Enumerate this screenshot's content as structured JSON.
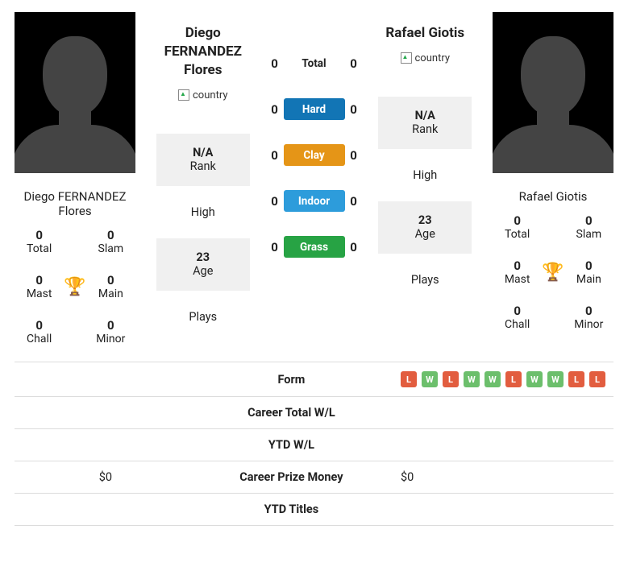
{
  "colors": {
    "hard": "#1275b5",
    "clay": "#e59517",
    "indoor": "#2d9cdb",
    "grass": "#27a344",
    "win": "#6cbf6c",
    "loss": "#e25d3f",
    "trophy": "#2a6bb6"
  },
  "left": {
    "name": "Diego FERNANDEZ Flores",
    "photo_name": "Diego FERNANDEZ Flores",
    "flag_alt": "country",
    "rank_value": "N/A",
    "rank_label": "Rank",
    "high_value": "",
    "high_label": "High",
    "age_value": "23",
    "age_label": "Age",
    "plays_value": "",
    "plays_label": "Plays",
    "stats": {
      "total": {
        "v": "0",
        "l": "Total"
      },
      "slam": {
        "v": "0",
        "l": "Slam"
      },
      "mast": {
        "v": "0",
        "l": "Mast"
      },
      "main": {
        "v": "0",
        "l": "Main"
      },
      "chall": {
        "v": "0",
        "l": "Chall"
      },
      "minor": {
        "v": "0",
        "l": "Minor"
      }
    }
  },
  "right": {
    "name": "Rafael Giotis",
    "photo_name": "Rafael Giotis",
    "flag_alt": "country",
    "rank_value": "N/A",
    "rank_label": "Rank",
    "high_value": "",
    "high_label": "High",
    "age_value": "23",
    "age_label": "Age",
    "plays_value": "",
    "plays_label": "Plays",
    "stats": {
      "total": {
        "v": "0",
        "l": "Total"
      },
      "slam": {
        "v": "0",
        "l": "Slam"
      },
      "mast": {
        "v": "0",
        "l": "Mast"
      },
      "main": {
        "v": "0",
        "l": "Main"
      },
      "chall": {
        "v": "0",
        "l": "Chall"
      },
      "minor": {
        "v": "0",
        "l": "Minor"
      }
    }
  },
  "h2h": {
    "rows": [
      {
        "l": "0",
        "label": "Total",
        "r": "0",
        "style": "plain"
      },
      {
        "l": "0",
        "label": "Hard",
        "r": "0",
        "colorKey": "hard"
      },
      {
        "l": "0",
        "label": "Clay",
        "r": "0",
        "colorKey": "clay"
      },
      {
        "l": "0",
        "label": "Indoor",
        "r": "0",
        "colorKey": "indoor"
      },
      {
        "l": "0",
        "label": "Grass",
        "r": "0",
        "colorKey": "grass"
      }
    ]
  },
  "compare": {
    "rows": [
      {
        "label": "Form",
        "l": "",
        "r_form": [
          "L",
          "W",
          "L",
          "W",
          "W",
          "L",
          "W",
          "W",
          "L",
          "L"
        ]
      },
      {
        "label": "Career Total W/L",
        "l": "",
        "r": ""
      },
      {
        "label": "YTD W/L",
        "l": "",
        "r": ""
      },
      {
        "label": "Career Prize Money",
        "l": "$0",
        "r": "$0"
      },
      {
        "label": "YTD Titles",
        "l": "",
        "r": ""
      }
    ]
  }
}
